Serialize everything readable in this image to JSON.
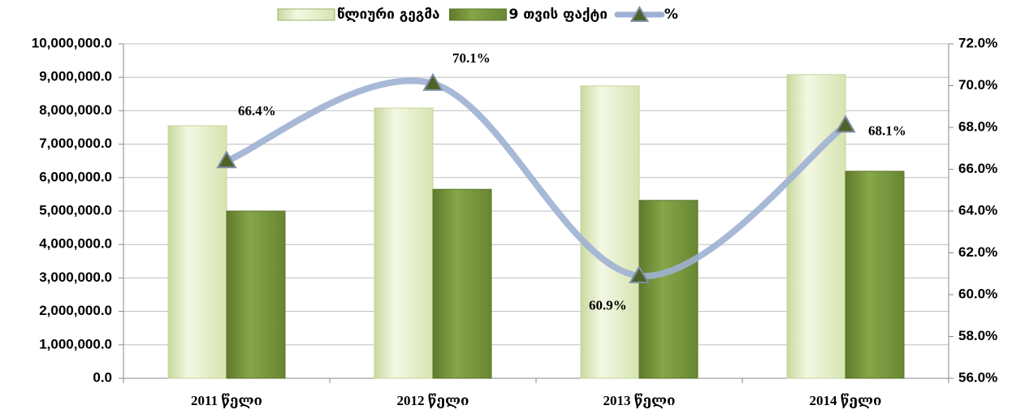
{
  "chart_data": {
    "type": "bar_line",
    "categories": [
      "2011 წელი",
      "2012 წელი",
      "2013 წელი",
      "2014 წელი"
    ],
    "series": [
      {
        "name": "წლიური გეგმა",
        "color": "#e4efc6",
        "values": [
          7550000,
          8080000,
          8740000,
          9080000
        ]
      },
      {
        "name": "9 თვის ფაქტი",
        "color": "#77963a",
        "values": [
          5000000,
          5650000,
          5320000,
          6190000
        ]
      },
      {
        "name": "%",
        "color": "#9fb1d3",
        "axis": "y2",
        "type": "line",
        "values": [
          66.4,
          70.1,
          60.9,
          68.1
        ],
        "value_labels": [
          "66.4%",
          "70.1%",
          "60.9%",
          "68.1%"
        ]
      }
    ],
    "ylim": [
      0,
      10000000
    ],
    "yticks": [
      {
        "value": 0,
        "label": "0.0"
      },
      {
        "value": 1000000,
        "label": "1,000,000.0"
      },
      {
        "value": 2000000,
        "label": "2,000,000.0"
      },
      {
        "value": 3000000,
        "label": "3,000,000.0"
      },
      {
        "value": 4000000,
        "label": "4,000,000.0"
      },
      {
        "value": 5000000,
        "label": "5,000,000.0"
      },
      {
        "value": 6000000,
        "label": "6,000,000.0"
      },
      {
        "value": 7000000,
        "label": "7,000,000.0"
      },
      {
        "value": 8000000,
        "label": "8,000,000.0"
      },
      {
        "value": 9000000,
        "label": "9,000,000.0"
      },
      {
        "value": 10000000,
        "label": "10,000,000.0"
      }
    ],
    "y2lim": [
      56,
      72
    ],
    "y2ticks": [
      {
        "value": 56,
        "label": "56.0%"
      },
      {
        "value": 58,
        "label": "58.0%"
      },
      {
        "value": 60,
        "label": "60.0%"
      },
      {
        "value": 62,
        "label": "62.0%"
      },
      {
        "value": 64,
        "label": "64.0%"
      },
      {
        "value": 66,
        "label": "66.0%"
      },
      {
        "value": 68,
        "label": "68.0%"
      },
      {
        "value": 70,
        "label": "70.0%"
      },
      {
        "value": 72,
        "label": "72.0%"
      }
    ],
    "grid": true,
    "legend": "top"
  }
}
